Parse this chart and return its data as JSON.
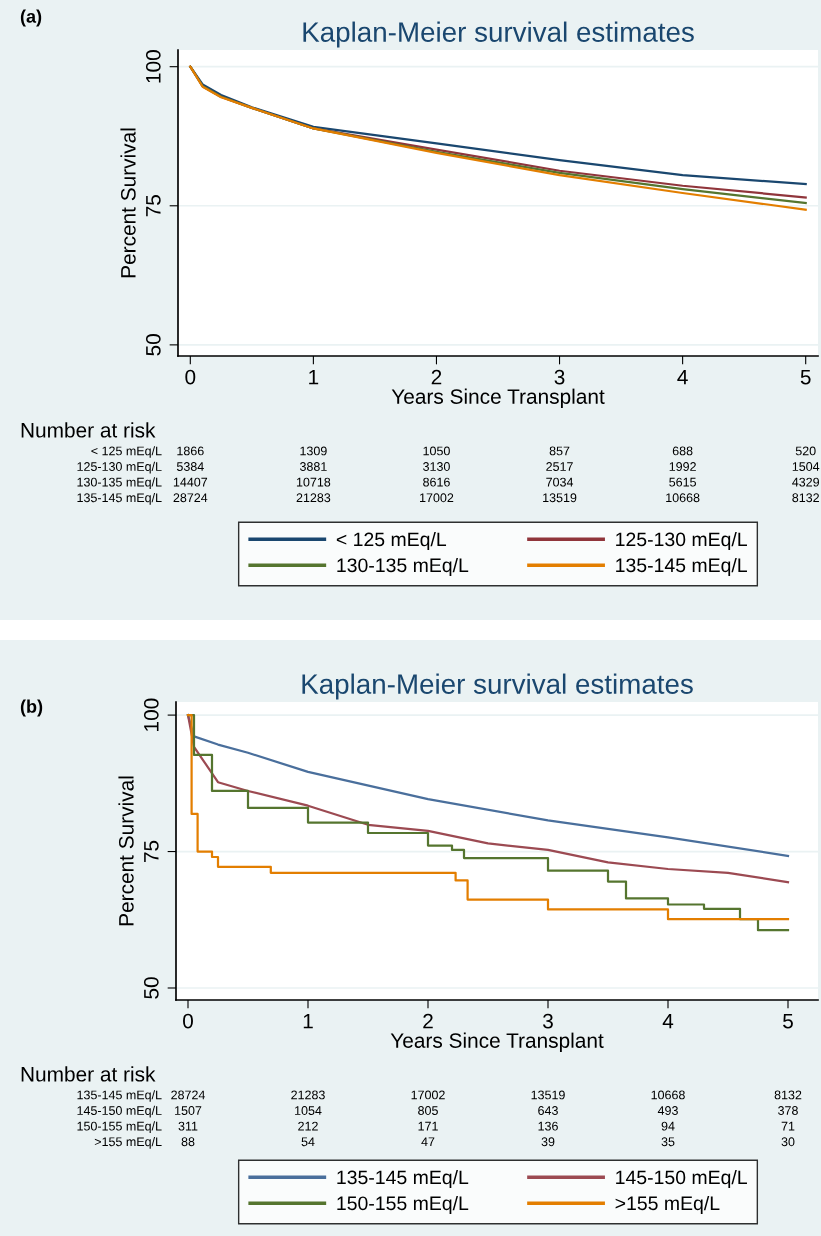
{
  "chart_data": [
    {
      "type": "line",
      "title": "Kaplan-Meier survival estimates",
      "xlabel": "Years Since Transplant",
      "ylabel": "Percent Survival",
      "xlim": [
        -0.1,
        5.1
      ],
      "ylim": [
        48,
        103
      ],
      "xticks": [
        0,
        1,
        2,
        3,
        4,
        5
      ],
      "yticks": [
        50,
        75,
        100
      ],
      "grid": "y",
      "legend": "bottom",
      "series": [
        {
          "name": "< 125 mEq/L",
          "color": "#1a476f",
          "x": [
            0,
            0.1,
            0.25,
            0.5,
            1,
            2,
            3,
            4,
            5
          ],
          "values": [
            100,
            96.8,
            94.9,
            92.7,
            89.2,
            86.2,
            83.2,
            80.5,
            78.9
          ]
        },
        {
          "name": "125-130 mEq/L",
          "color": "#90353b",
          "x": [
            0,
            0.1,
            0.25,
            0.5,
            1,
            2,
            3,
            4,
            5
          ],
          "values": [
            100,
            96.5,
            94.6,
            92.6,
            88.9,
            85.1,
            81.3,
            78.6,
            76.5
          ]
        },
        {
          "name": "130-135 mEq/L",
          "color": "#55752f",
          "x": [
            0,
            0.1,
            0.25,
            0.5,
            1,
            2,
            3,
            4,
            5
          ],
          "values": [
            100,
            96.5,
            94.6,
            92.6,
            88.9,
            84.7,
            80.9,
            78,
            75.5
          ]
        },
        {
          "name": "135-145 mEq/L",
          "color": "#e37e00",
          "x": [
            0,
            0.1,
            0.25,
            0.5,
            1,
            2,
            3,
            4,
            5
          ],
          "values": [
            100,
            96.4,
            94.5,
            92.6,
            88.9,
            84.5,
            80.5,
            77.3,
            74.3
          ]
        }
      ],
      "annotations": [
        "(a)",
        "Number at risk",
        "< 125 mEq/L",
        "1866",
        "1309",
        "1050",
        "857",
        "688",
        "520",
        "125-130 mEq/L",
        "5384",
        "3881",
        "3130",
        "2517",
        "1992",
        "1504",
        "130-135 mEq/L",
        "14407",
        "10718",
        "8616",
        "7034",
        "5615",
        "4329",
        "135-145 mEq/L",
        "28724",
        "21283",
        "17002",
        "13519",
        "10668",
        "8132"
      ]
    },
    {
      "type": "line",
      "title": "Kaplan-Meier survival estimates",
      "xlabel": "Years Since Transplant",
      "ylabel": "Percent Survival",
      "xlim": [
        -0.1,
        5.25
      ],
      "ylim": [
        47.8,
        102.4
      ],
      "xticks": [
        0,
        1,
        2,
        3,
        4,
        5
      ],
      "yticks": [
        50,
        75,
        100
      ],
      "grid": "y",
      "legend": "bottom",
      "series": [
        {
          "name": "135-145 mEq/L",
          "color": "#4a6f9c",
          "x": [
            0,
            0.05,
            0.25,
            0.5,
            1,
            2,
            3,
            4,
            5
          ],
          "values": [
            100,
            96.1,
            94.6,
            93.1,
            89.6,
            84.6,
            80.7,
            77.6,
            74.2
          ]
        },
        {
          "name": "145-150 mEq/L",
          "color": "#9c4a52",
          "x": [
            0,
            0.05,
            0.25,
            0.5,
            1,
            1.5,
            2,
            2.5,
            3,
            3.5,
            4,
            4.5,
            5
          ],
          "values": [
            100,
            94.2,
            87.7,
            86.1,
            83.4,
            79.9,
            78.8,
            76.5,
            75.3,
            73,
            71.8,
            71.1,
            69.4
          ]
        },
        {
          "name": "150-155 mEq/L",
          "color": "#55752f",
          "type": "step",
          "x": [
            0,
            0.05,
            0.2,
            0.5,
            1,
            1.5,
            2,
            2.2,
            2.3,
            3,
            3.5,
            3.65,
            4,
            4.3,
            4.6,
            4.75,
            5
          ],
          "values": [
            100,
            92.7,
            86.1,
            83,
            80.3,
            78.4,
            76.1,
            75.3,
            73.8,
            71.5,
            69.5,
            66.4,
            65.3,
            64.5,
            62.6,
            60.6,
            60.6
          ]
        },
        {
          "name": ">155 mEq/L",
          "color": "#e37e00",
          "type": "step",
          "x": [
            0,
            0.03,
            0.08,
            0.2,
            0.25,
            0.69,
            2.23,
            2.33,
            3,
            4,
            5
          ],
          "values": [
            100,
            81.9,
            75,
            74,
            72.2,
            71.1,
            69.7,
            66.2,
            64.4,
            62.6,
            62.6
          ]
        }
      ],
      "annotations": [
        "(b)",
        "Number at risk",
        "135-145 mEq/L",
        "28724",
        "21283",
        "17002",
        "13519",
        "10668",
        "8132",
        "145-150 mEq/L",
        "1507",
        "1054",
        "805",
        "643",
        "493",
        "378",
        "150-155 mEq/L",
        "311",
        "212",
        "171",
        "136",
        "94",
        "71",
        ">155 mEq/L",
        "88",
        "54",
        "47",
        "39",
        "35",
        "30"
      ]
    }
  ]
}
